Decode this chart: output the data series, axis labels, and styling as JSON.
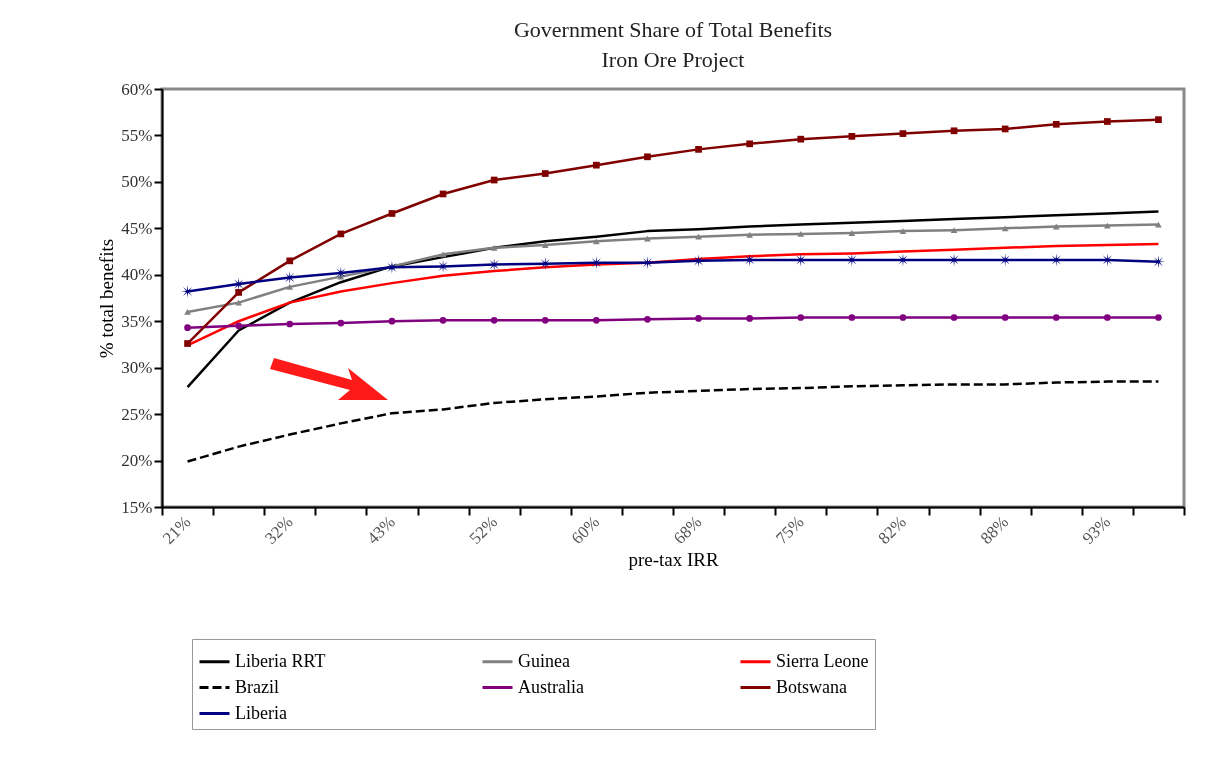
{
  "chart_data": {
    "type": "line",
    "title": "Government Share of Total Benefits",
    "subtitle": "Iron Ore Project",
    "xlabel": "pre-tax IRR",
    "ylabel": "% total benefits",
    "categories": [
      "21%",
      null,
      "32%",
      null,
      "43%",
      null,
      "52%",
      null,
      "60%",
      null,
      "68%",
      null,
      "75%",
      null,
      "82%",
      null,
      "88%",
      null,
      "93%",
      null
    ],
    "ylim": [
      15,
      60
    ],
    "yticks": [
      {
        "value": 15,
        "label": "15%"
      },
      {
        "value": 20,
        "label": "20%"
      },
      {
        "value": 25,
        "label": "25%"
      },
      {
        "value": 30,
        "label": "30%"
      },
      {
        "value": 35,
        "label": "35%"
      },
      {
        "value": 40,
        "label": "40%"
      },
      {
        "value": 45,
        "label": "45%"
      },
      {
        "value": 50,
        "label": "50%"
      },
      {
        "value": 55,
        "label": "55%"
      },
      {
        "value": 60,
        "label": "60%"
      }
    ],
    "legend": "bottom",
    "series": [
      {
        "name": "Liberia RRT",
        "color": "#000000",
        "marker": "none",
        "line_style": "solid",
        "values": [
          27.9,
          34.0,
          37.0,
          39.2,
          40.9,
          41.9,
          42.9,
          43.6,
          44.1,
          44.7,
          44.9,
          45.2,
          45.4,
          45.6,
          45.8,
          46.0,
          46.2,
          46.4,
          46.6,
          46.8
        ]
      },
      {
        "name": "Guinea",
        "color": "#808080",
        "marker": "triangle",
        "line_style": "solid",
        "values": [
          36.0,
          37.0,
          38.7,
          39.8,
          40.9,
          42.2,
          42.9,
          43.2,
          43.6,
          43.9,
          44.1,
          44.3,
          44.4,
          44.5,
          44.7,
          44.8,
          45.0,
          45.2,
          45.3,
          45.4
        ]
      },
      {
        "name": "Sierra Leone",
        "color": "#ff0000",
        "marker": "none",
        "line_style": "solid",
        "values": [
          32.4,
          35.0,
          37.0,
          38.2,
          39.1,
          39.9,
          40.4,
          40.8,
          41.1,
          41.3,
          41.7,
          42.0,
          42.2,
          42.3,
          42.5,
          42.7,
          42.9,
          43.1,
          43.2,
          43.3
        ]
      },
      {
        "name": "Brazil",
        "color": "#000000",
        "marker": "none",
        "line_style": "dashed",
        "values": [
          19.9,
          21.5,
          22.8,
          24.0,
          25.1,
          25.5,
          26.2,
          26.6,
          26.9,
          27.3,
          27.5,
          27.7,
          27.8,
          28.0,
          28.1,
          28.2,
          28.2,
          28.4,
          28.5,
          28.5
        ]
      },
      {
        "name": "Australia",
        "color": "#800080",
        "marker": "circle",
        "line_style": "solid",
        "values": [
          34.3,
          34.5,
          34.7,
          34.8,
          35.0,
          35.1,
          35.1,
          35.1,
          35.1,
          35.2,
          35.3,
          35.3,
          35.4,
          35.4,
          35.4,
          35.4,
          35.4,
          35.4,
          35.4,
          35.4
        ]
      },
      {
        "name": "Botswana",
        "color": "#800000",
        "marker": "square",
        "line_style": "solid",
        "values": [
          32.6,
          38.1,
          41.5,
          44.4,
          46.6,
          48.7,
          50.2,
          50.9,
          51.8,
          52.7,
          53.5,
          54.1,
          54.6,
          54.9,
          55.2,
          55.5,
          55.7,
          56.2,
          56.5,
          56.7
        ]
      },
      {
        "name": "Liberia",
        "color": "#000080",
        "marker": "star",
        "line_style": "solid",
        "values": [
          38.2,
          39.0,
          39.7,
          40.2,
          40.8,
          40.9,
          41.1,
          41.2,
          41.3,
          41.3,
          41.5,
          41.6,
          41.6,
          41.6,
          41.6,
          41.6,
          41.6,
          41.6,
          41.6,
          41.4
        ]
      }
    ]
  }
}
